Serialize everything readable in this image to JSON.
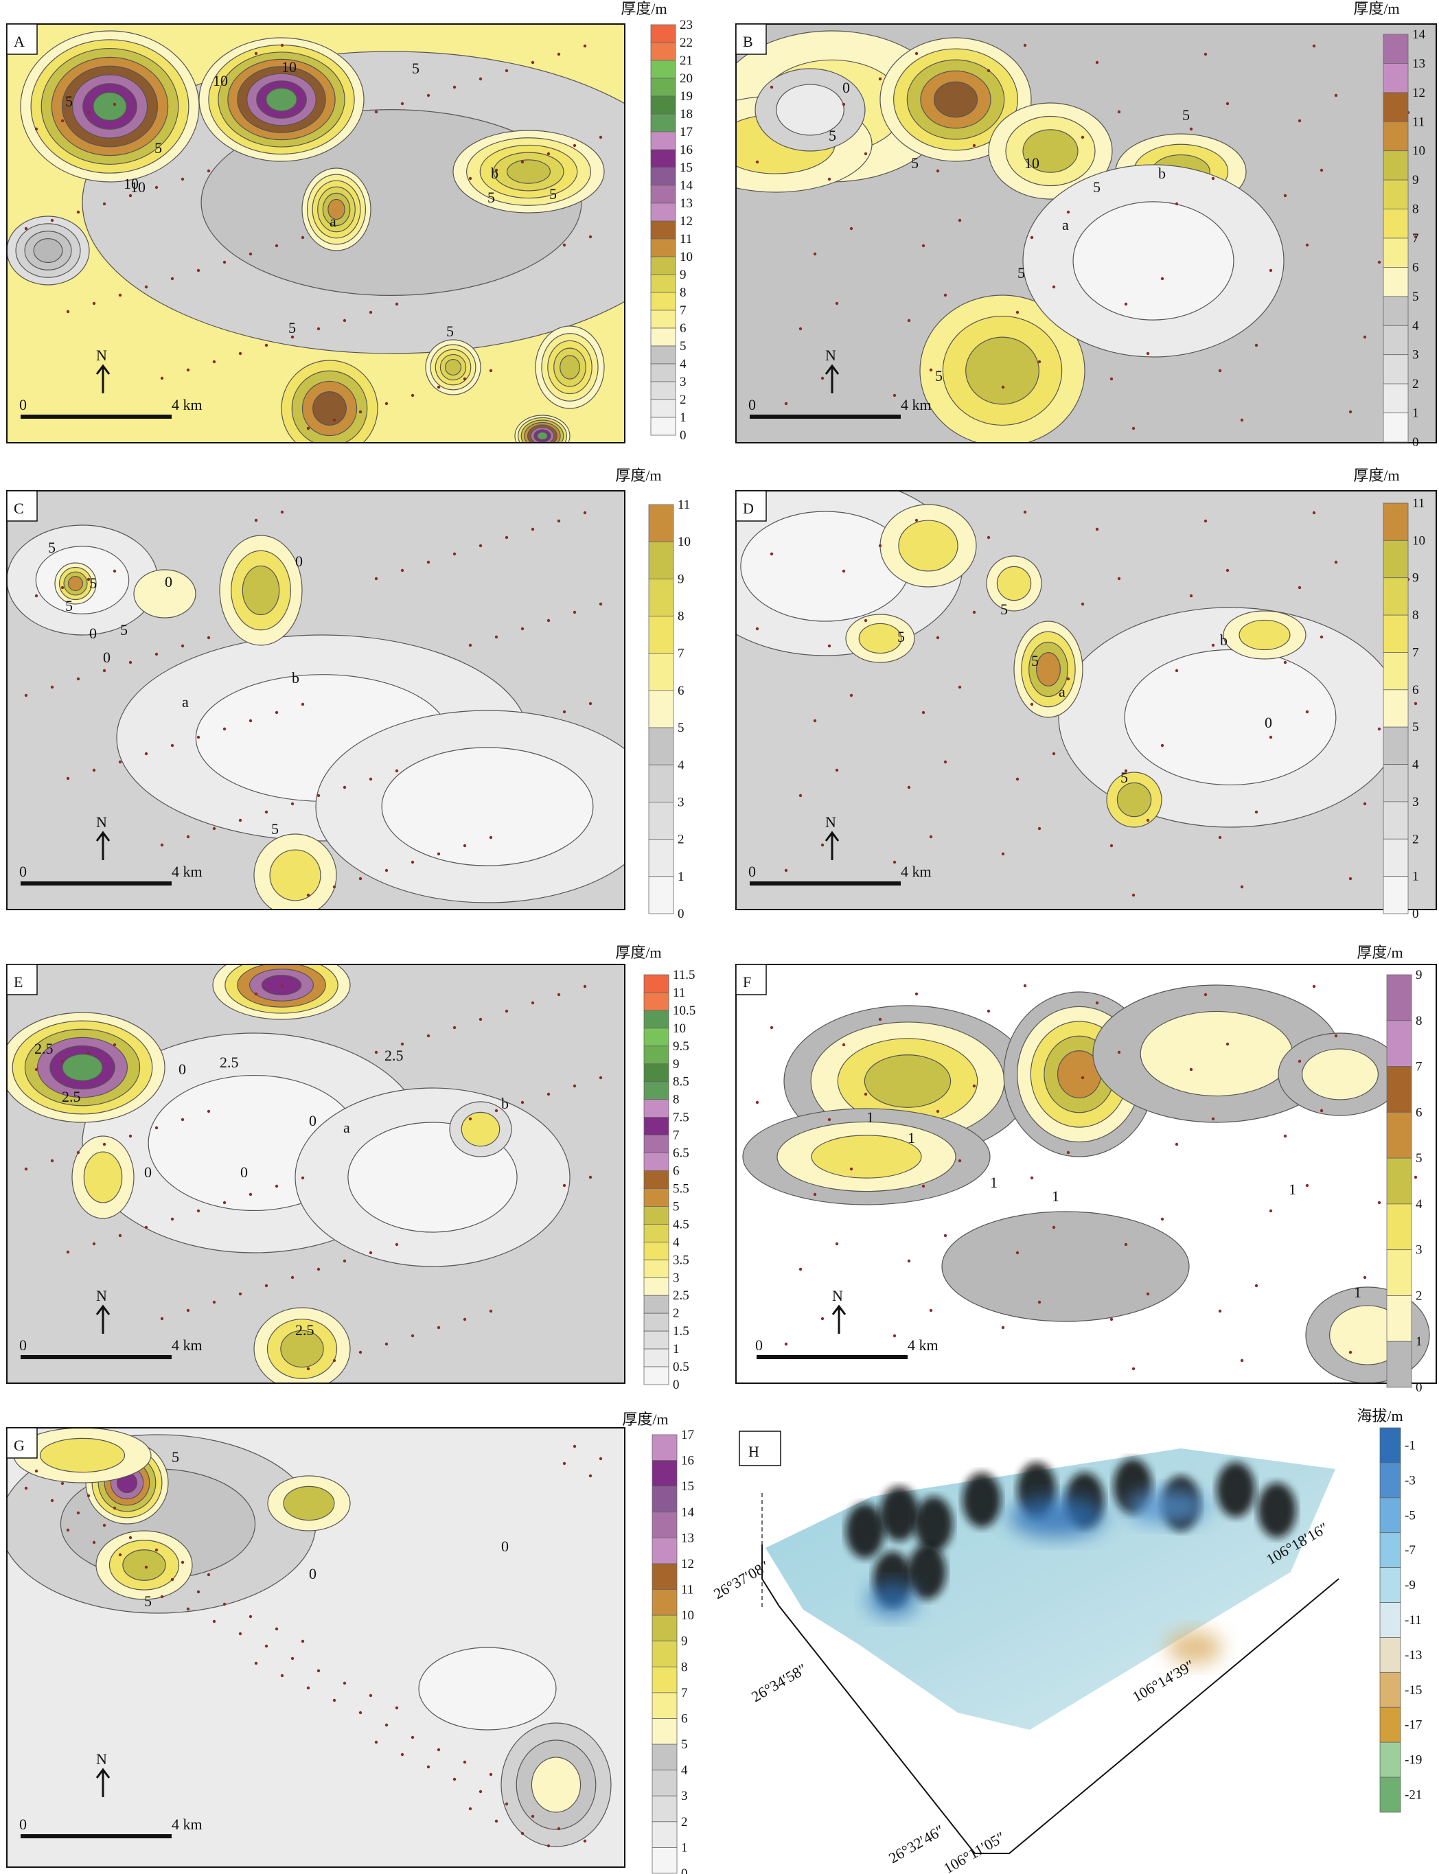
{
  "units": {
    "thickness": "厚度/m",
    "elevation": "海拔/m"
  },
  "north": "N",
  "scale_start": "0",
  "scale_end": "4 km",
  "colors": {
    "grays": [
      "#f5f5f5",
      "#ebebeb",
      "#dedede",
      "#d2d2d2",
      "#c4c4c4",
      "#b8b8b8"
    ],
    "yellows": [
      "#fbf6c4",
      "#f8ee92",
      "#f1e366",
      "#ded556",
      "#c7c14a",
      "#b3b044"
    ],
    "browns": [
      "#c98e3c",
      "#a5652b",
      "#8c5a2f"
    ],
    "purples": [
      "#c58ec2",
      "#a972a6",
      "#7f2d85",
      "#6b2a73"
    ],
    "greens": [
      "#5e9d5a",
      "#4f8a43",
      "#6cae52",
      "#79c45a"
    ],
    "reds": [
      "#ef7b4a",
      "#ef6640",
      "#e83c33"
    ],
    "elev": [
      "#2e6fb6",
      "#4f8fcd",
      "#6eafe0",
      "#8fcae8",
      "#b3dcec",
      "#d8eaef",
      "#e8e0c6",
      "#dcb36e",
      "#d39f3a",
      "#9dcf9d",
      "#6fb070",
      "#b8b79a"
    ]
  },
  "panels": [
    {
      "id": "A",
      "unit": "厚度/m",
      "ticks": [
        "23",
        "22",
        "21",
        "20",
        "19",
        "18",
        "17",
        "16",
        "15",
        "14",
        "13",
        "12",
        "11",
        "10",
        "9",
        "8",
        "7",
        "6",
        "5",
        "4",
        "3",
        "2",
        "1",
        "0"
      ],
      "labels": [
        {
          "t": "a"
        },
        {
          "t": "b"
        },
        {
          "t": "5"
        },
        {
          "t": "5"
        },
        {
          "t": "5"
        },
        {
          "t": "5"
        },
        {
          "t": "5"
        },
        {
          "t": "5"
        },
        {
          "t": "5"
        },
        {
          "t": "10"
        },
        {
          "t": "10"
        },
        {
          "t": "10"
        },
        {
          "t": "10"
        }
      ]
    },
    {
      "id": "B",
      "unit": "厚度/m",
      "ticks": [
        "14",
        "13",
        "12",
        "11",
        "10",
        "9",
        "8",
        "7",
        "6",
        "5",
        "4",
        "3",
        "2",
        "1",
        "0"
      ],
      "labels": [
        {
          "t": "a"
        },
        {
          "t": "b"
        },
        {
          "t": "0"
        },
        {
          "t": "5"
        },
        {
          "t": "5"
        },
        {
          "t": "5"
        },
        {
          "t": "5"
        },
        {
          "t": "5"
        },
        {
          "t": "5"
        },
        {
          "t": "10"
        }
      ]
    },
    {
      "id": "C",
      "unit": "厚度/m",
      "ticks": [
        "11",
        "10",
        "9",
        "8",
        "7",
        "6",
        "5",
        "4",
        "3",
        "2",
        "1",
        "0"
      ],
      "labels": [
        {
          "t": "a"
        },
        {
          "t": "b"
        },
        {
          "t": "0"
        },
        {
          "t": "0"
        },
        {
          "t": "0"
        },
        {
          "t": "0"
        },
        {
          "t": "5"
        },
        {
          "t": "5"
        },
        {
          "t": "5"
        },
        {
          "t": "5"
        },
        {
          "t": "5"
        }
      ]
    },
    {
      "id": "D",
      "unit": "厚度/m",
      "ticks": [
        "11",
        "10",
        "9",
        "8",
        "7",
        "6",
        "5",
        "4",
        "3",
        "2",
        "1",
        "0"
      ],
      "labels": [
        {
          "t": "a"
        },
        {
          "t": "b"
        },
        {
          "t": "0"
        },
        {
          "t": "5"
        },
        {
          "t": "5"
        },
        {
          "t": "5"
        },
        {
          "t": "5"
        }
      ]
    },
    {
      "id": "E",
      "unit": "厚度/m",
      "ticks": [
        "11.5",
        "11",
        "10.5",
        "10",
        "9.5",
        "9",
        "8.5",
        "8",
        "7.5",
        "7",
        "6.5",
        "6",
        "5.5",
        "5",
        "4.5",
        "4",
        "3.5",
        "3",
        "2.5",
        "2",
        "1.5",
        "1",
        "0.5",
        "0"
      ],
      "labels": [
        {
          "t": "a"
        },
        {
          "t": "b"
        },
        {
          "t": "0"
        },
        {
          "t": "0"
        },
        {
          "t": "0"
        },
        {
          "t": "0"
        },
        {
          "t": "2.5"
        },
        {
          "t": "2.5"
        },
        {
          "t": "2.5"
        },
        {
          "t": "2.5"
        },
        {
          "t": "2.5"
        }
      ]
    },
    {
      "id": "F",
      "unit": "厚度/m",
      "ticks": [
        "9",
        "8",
        "7",
        "6",
        "5",
        "4",
        "3",
        "2",
        "1",
        "0"
      ],
      "labels": [
        {
          "t": "1"
        },
        {
          "t": "1"
        },
        {
          "t": "1"
        },
        {
          "t": "1"
        },
        {
          "t": "1"
        },
        {
          "t": "1"
        }
      ]
    },
    {
      "id": "G",
      "unit": "厚度/m",
      "ticks": [
        "17",
        "16",
        "15",
        "14",
        "13",
        "12",
        "11",
        "10",
        "9",
        "8",
        "7",
        "6",
        "5",
        "4",
        "3",
        "2",
        "1",
        "0"
      ],
      "labels": [
        {
          "t": "0"
        },
        {
          "t": "0"
        },
        {
          "t": "5"
        },
        {
          "t": "5"
        }
      ]
    },
    {
      "id": "H",
      "unit": "海拔/m",
      "ticks": [
        "-1",
        "-3",
        "-5",
        "-7",
        "-9",
        "-11",
        "-13",
        "-15",
        "-17",
        "-19",
        "-21"
      ],
      "axis_labels": [
        "26°37′08″",
        "26°34′58″",
        "26°32′46″",
        "106°11′05″",
        "106°14′39″",
        "106°18′16″"
      ]
    }
  ]
}
